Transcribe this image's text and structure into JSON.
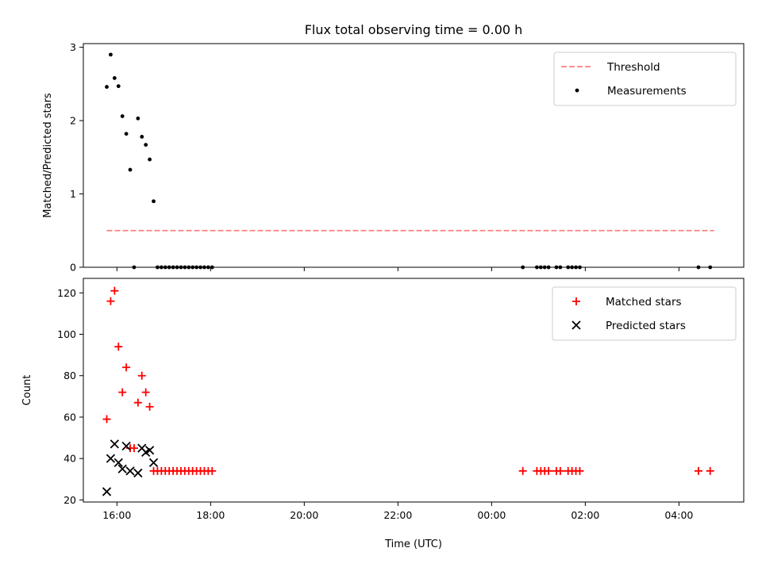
{
  "title": "Flux total observing time = 0.00 h",
  "xlabel": "Time (UTC)",
  "x_tick_labels": [
    "16:00",
    "18:00",
    "20:00",
    "22:00",
    "00:00",
    "02:00",
    "04:00"
  ],
  "colors": {
    "threshold": "#ff7f7f",
    "measurements": "#000000",
    "matched": "#ff0000",
    "predicted": "#000000"
  },
  "chart_data": [
    {
      "type": "scatter",
      "ylabel": "Matched/Predicted stars",
      "ylim": [
        0,
        3.05
      ],
      "xlim": [
        "15:17",
        "05:23"
      ],
      "y_ticks": [
        0,
        1,
        2,
        3
      ],
      "legend": {
        "placement": "top-right",
        "entries": [
          "Threshold",
          "Measurements"
        ]
      },
      "threshold": {
        "name": "Threshold",
        "y": 0.5,
        "x_from": "15:47",
        "x_to": "04:45"
      },
      "series": [
        {
          "name": "Measurements",
          "points": [
            [
              "15:47",
              2.46
            ],
            [
              "15:52",
              2.9
            ],
            [
              "15:57",
              2.58
            ],
            [
              "16:02",
              2.47
            ],
            [
              "16:07",
              2.06
            ],
            [
              "16:12",
              1.82
            ],
            [
              "16:17",
              1.33
            ],
            [
              "16:22",
              0.0
            ],
            [
              "16:27",
              2.03
            ],
            [
              "16:32",
              1.78
            ],
            [
              "16:37",
              1.67
            ],
            [
              "16:42",
              1.47
            ],
            [
              "16:47",
              0.9
            ],
            [
              "16:52",
              0.0
            ],
            [
              "16:57",
              0.0
            ],
            [
              "17:02",
              0.0
            ],
            [
              "17:07",
              0.0
            ],
            [
              "17:12",
              0.0
            ],
            [
              "17:17",
              0.0
            ],
            [
              "17:22",
              0.0
            ],
            [
              "17:27",
              0.0
            ],
            [
              "17:32",
              0.0
            ],
            [
              "17:37",
              0.0
            ],
            [
              "17:42",
              0.0
            ],
            [
              "17:47",
              0.0
            ],
            [
              "17:52",
              0.0
            ],
            [
              "17:57",
              0.0
            ],
            [
              "18:02",
              0.0
            ],
            [
              "00:40",
              0.0
            ],
            [
              "00:58",
              0.0
            ],
            [
              "01:03",
              0.0
            ],
            [
              "01:08",
              0.0
            ],
            [
              "01:13",
              0.0
            ],
            [
              "01:23",
              0.0
            ],
            [
              "01:28",
              0.0
            ],
            [
              "01:38",
              0.0
            ],
            [
              "01:43",
              0.0
            ],
            [
              "01:48",
              0.0
            ],
            [
              "01:53",
              0.0
            ],
            [
              "04:25",
              0.0
            ],
            [
              "04:40",
              0.0
            ]
          ]
        }
      ]
    },
    {
      "type": "scatter",
      "ylabel": "Count",
      "ylim": [
        19,
        127
      ],
      "xlim": [
        "15:17",
        "05:23"
      ],
      "y_ticks": [
        20,
        40,
        60,
        80,
        100,
        120
      ],
      "legend": {
        "placement": "top-right",
        "entries": [
          "Matched stars",
          "Predicted stars"
        ]
      },
      "series": [
        {
          "name": "Matched stars",
          "marker": "plus",
          "points": [
            [
              "15:47",
              59
            ],
            [
              "15:52",
              116
            ],
            [
              "15:57",
              121
            ],
            [
              "16:02",
              94
            ],
            [
              "16:07",
              72
            ],
            [
              "16:12",
              84
            ],
            [
              "16:17",
              45
            ],
            [
              "16:22",
              45
            ],
            [
              "16:27",
              67
            ],
            [
              "16:32",
              80
            ],
            [
              "16:37",
              72
            ],
            [
              "16:42",
              65
            ],
            [
              "16:47",
              34
            ],
            [
              "16:52",
              34
            ],
            [
              "16:57",
              34
            ],
            [
              "17:02",
              34
            ],
            [
              "17:07",
              34
            ],
            [
              "17:12",
              34
            ],
            [
              "17:17",
              34
            ],
            [
              "17:22",
              34
            ],
            [
              "17:27",
              34
            ],
            [
              "17:32",
              34
            ],
            [
              "17:37",
              34
            ],
            [
              "17:42",
              34
            ],
            [
              "17:47",
              34
            ],
            [
              "17:52",
              34
            ],
            [
              "17:57",
              34
            ],
            [
              "18:02",
              34
            ],
            [
              "00:40",
              34
            ],
            [
              "00:58",
              34
            ],
            [
              "01:03",
              34
            ],
            [
              "01:08",
              34
            ],
            [
              "01:13",
              34
            ],
            [
              "01:23",
              34
            ],
            [
              "01:28",
              34
            ],
            [
              "01:38",
              34
            ],
            [
              "01:43",
              34
            ],
            [
              "01:48",
              34
            ],
            [
              "01:53",
              34
            ],
            [
              "04:25",
              34
            ],
            [
              "04:40",
              34
            ]
          ]
        },
        {
          "name": "Predicted stars",
          "marker": "x",
          "points": [
            [
              "15:47",
              24
            ],
            [
              "15:52",
              40
            ],
            [
              "15:57",
              47
            ],
            [
              "16:02",
              38
            ],
            [
              "16:07",
              35
            ],
            [
              "16:12",
              46
            ],
            [
              "16:17",
              34
            ],
            [
              "16:27",
              33
            ],
            [
              "16:32",
              45
            ],
            [
              "16:37",
              43
            ],
            [
              "16:42",
              44
            ],
            [
              "16:47",
              38
            ]
          ]
        }
      ]
    }
  ]
}
